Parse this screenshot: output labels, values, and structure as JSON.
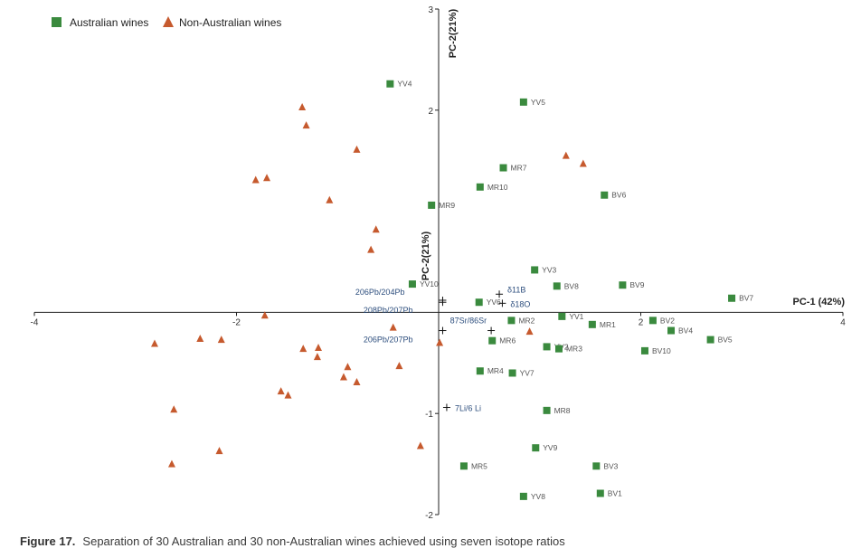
{
  "caption": {
    "label": "Figure 17.",
    "text": "Separation of 30 Australian and 30 non-Australian wines achieved using seven isotope ratios"
  },
  "colors": {
    "australian": "#3a8a3e",
    "non_australian": "#c65a2e",
    "axis": "#222222",
    "vector_label": "#2e4f7e",
    "point_label": "#555555"
  },
  "chart_data": {
    "type": "scatter",
    "xlabel": "PC-1 (42%)",
    "ylabel": "PC-2(21%)",
    "inner_ylabel": "PC-2(21%)",
    "xlim": [
      -4,
      4
    ],
    "ylim": [
      -2,
      3
    ],
    "xticks": [
      -4,
      -2,
      2,
      4
    ],
    "yticks": [
      3,
      2,
      -1,
      -2
    ],
    "legend_position": "top-left",
    "grid": false,
    "series": [
      {
        "name": "Australian wines",
        "marker": "square",
        "points": [
          {
            "label": "YV4",
            "x": -0.48,
            "y": 2.26
          },
          {
            "label": "YV5",
            "x": 0.84,
            "y": 2.08
          },
          {
            "label": "MR7",
            "x": 0.64,
            "y": 1.43
          },
          {
            "label": "MR10",
            "x": 0.41,
            "y": 1.24
          },
          {
            "label": "BV6",
            "x": 1.64,
            "y": 1.16
          },
          {
            "label": "MR9",
            "x": -0.07,
            "y": 1.06
          },
          {
            "label": "YV3",
            "x": 0.95,
            "y": 0.42
          },
          {
            "label": "BV8",
            "x": 1.17,
            "y": 0.26
          },
          {
            "label": "BV9",
            "x": 1.82,
            "y": 0.27
          },
          {
            "label": "YV10",
            "x": -0.26,
            "y": 0.28
          },
          {
            "label": "BV7",
            "x": 2.9,
            "y": 0.14
          },
          {
            "label": "YV6",
            "x": 0.4,
            "y": 0.1
          },
          {
            "label": "YV1",
            "x": 1.22,
            "y": -0.04
          },
          {
            "label": "MR2",
            "x": 0.72,
            "y": -0.08
          },
          {
            "label": "BV2",
            "x": 2.12,
            "y": -0.08
          },
          {
            "label": "MR1",
            "x": 1.52,
            "y": -0.12
          },
          {
            "label": "BV4",
            "x": 2.3,
            "y": -0.18
          },
          {
            "label": "BV5",
            "x": 2.69,
            "y": -0.27
          },
          {
            "label": "MR6",
            "x": 0.53,
            "y": -0.28
          },
          {
            "label": "YV2",
            "x": 1.07,
            "y": -0.34
          },
          {
            "label": "MR3",
            "x": 1.19,
            "y": -0.36
          },
          {
            "label": "BV10",
            "x": 2.04,
            "y": -0.38
          },
          {
            "label": "MR4",
            "x": 0.41,
            "y": -0.58
          },
          {
            "label": "YV7",
            "x": 0.73,
            "y": -0.6
          },
          {
            "label": "MR8",
            "x": 1.07,
            "y": -0.97
          },
          {
            "label": "YV9",
            "x": 0.96,
            "y": -1.34
          },
          {
            "label": "MR5",
            "x": 0.25,
            "y": -1.52
          },
          {
            "label": "BV3",
            "x": 1.56,
            "y": -1.52
          },
          {
            "label": "BV1",
            "x": 1.6,
            "y": -1.79
          },
          {
            "label": "YV8",
            "x": 0.84,
            "y": -1.82
          }
        ]
      },
      {
        "name": "Non-Australian wines",
        "marker": "triangle",
        "points": [
          {
            "x": -1.35,
            "y": 2.03
          },
          {
            "x": -1.31,
            "y": 1.85
          },
          {
            "x": -0.81,
            "y": 1.61
          },
          {
            "x": -1.81,
            "y": 1.31
          },
          {
            "x": -1.7,
            "y": 1.33
          },
          {
            "x": 1.26,
            "y": 1.55
          },
          {
            "x": 1.43,
            "y": 1.47
          },
          {
            "x": -1.08,
            "y": 1.11
          },
          {
            "x": -0.62,
            "y": 0.82
          },
          {
            "x": -0.67,
            "y": 0.62
          },
          {
            "x": -1.72,
            "y": -0.03
          },
          {
            "x": -2.81,
            "y": -0.31
          },
          {
            "x": -2.36,
            "y": -0.26
          },
          {
            "x": -2.15,
            "y": -0.27
          },
          {
            "x": -1.34,
            "y": -0.36
          },
          {
            "x": -1.19,
            "y": -0.35
          },
          {
            "x": -1.2,
            "y": -0.44
          },
          {
            "x": -0.9,
            "y": -0.54
          },
          {
            "x": -0.45,
            "y": -0.15
          },
          {
            "x": -0.39,
            "y": -0.53
          },
          {
            "x": 0.01,
            "y": -0.3
          },
          {
            "x": 0.9,
            "y": -0.19
          },
          {
            "x": -0.94,
            "y": -0.64
          },
          {
            "x": -0.81,
            "y": -0.69
          },
          {
            "x": -1.56,
            "y": -0.78
          },
          {
            "x": -1.49,
            "y": -0.82
          },
          {
            "x": -2.62,
            "y": -0.96
          },
          {
            "x": -2.17,
            "y": -1.37
          },
          {
            "x": -0.18,
            "y": -1.32
          },
          {
            "x": -2.64,
            "y": -1.5
          }
        ]
      }
    ],
    "loading_vectors": [
      {
        "label": "206Pb/204Pb",
        "x": 0.04,
        "y": 0.1
      },
      {
        "label": "208Pb/207Pb",
        "x": 0.04,
        "y": 0.12
      },
      {
        "label": "δ11B",
        "x": 0.6,
        "y": 0.18
      },
      {
        "label": "δ18O",
        "x": 0.63,
        "y": 0.09
      },
      {
        "label": "87Sr/86Sr",
        "x": 0.52,
        "y": -0.18
      },
      {
        "label": "206Pb/207Pb",
        "x": 0.04,
        "y": -0.18
      },
      {
        "label": "7Li/6 Li",
        "x": 0.08,
        "y": -0.94
      }
    ]
  }
}
